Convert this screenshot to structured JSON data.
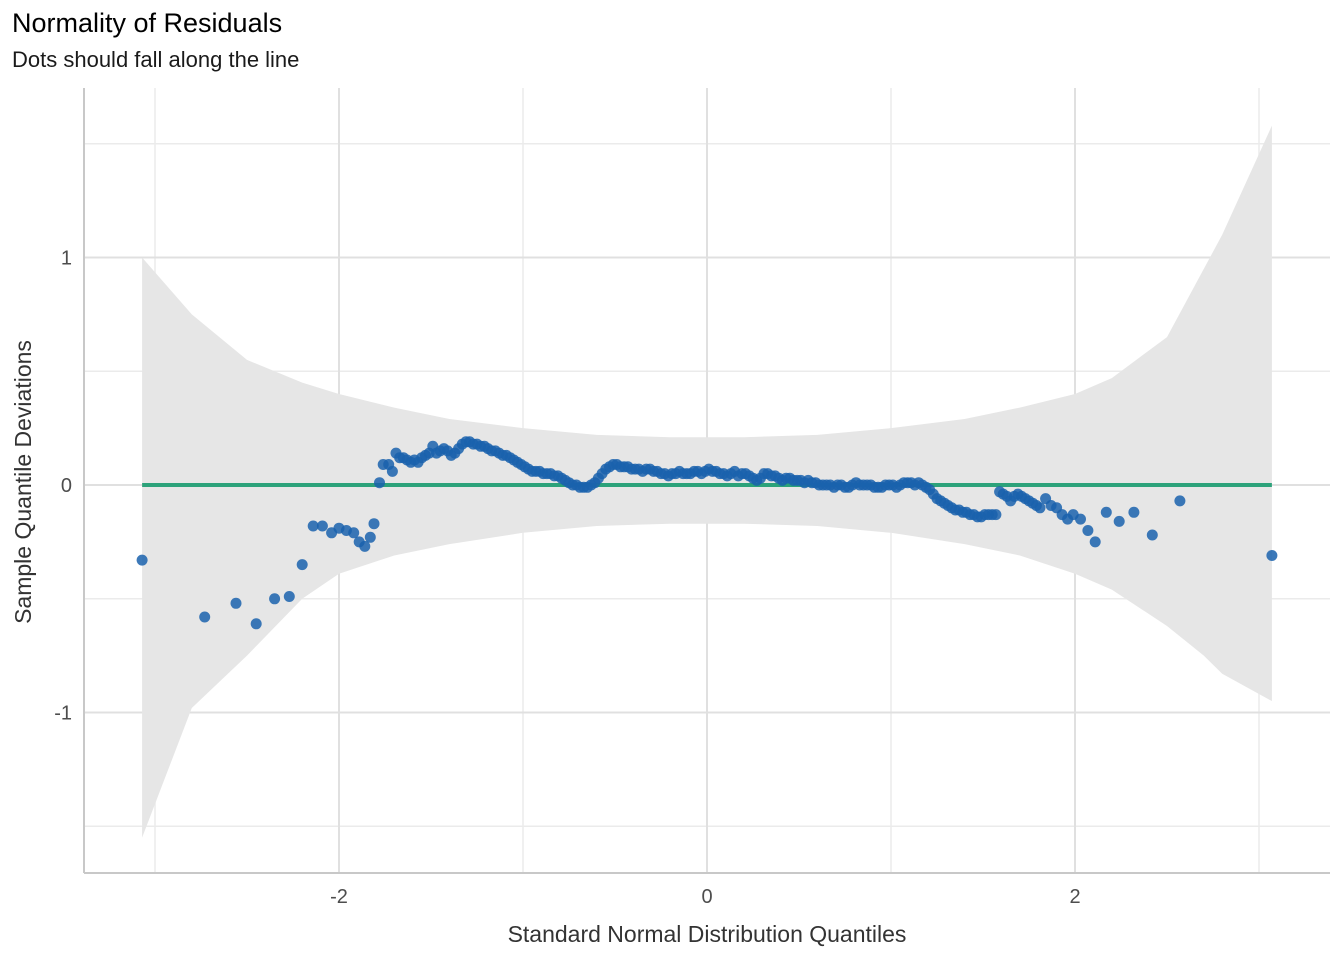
{
  "chart_data": {
    "type": "scatter",
    "title": "Normality of Residuals",
    "subtitle": "Dots should fall along the line",
    "xlabel": "Standard Normal Distribution Quantiles",
    "ylabel": "Sample Quantile Deviations",
    "xlim": [
      -3.4,
      3.4
    ],
    "ylim": [
      -1.7,
      1.75
    ],
    "x_ticks": [
      -2,
      0,
      2
    ],
    "x_tick_labels": [
      "-2",
      "0",
      "2"
    ],
    "y_ticks": [
      1,
      0,
      -1
    ],
    "y_tick_labels": [
      "1",
      "0",
      "-1"
    ],
    "x_minor_grid": [
      -3,
      -1,
      1,
      3
    ],
    "y_minor_grid": [
      1.5,
      0.5,
      -0.5,
      -1.5
    ],
    "grid": true,
    "reference_line": {
      "y": 0,
      "from_x": -3.07,
      "to_x": 3.07,
      "color": "#2ca27a"
    },
    "confidence_band": {
      "color": "#e6e6e6",
      "x": [
        -3.07,
        -2.8,
        -2.5,
        -2.2,
        -2.0,
        -1.7,
        -1.4,
        -1.0,
        -0.6,
        -0.2,
        0.2,
        0.6,
        1.0,
        1.4,
        1.7,
        2.0,
        2.2,
        2.5,
        2.7,
        2.8,
        3.07
      ],
      "upper": [
        1.0,
        0.75,
        0.55,
        0.45,
        0.4,
        0.34,
        0.29,
        0.25,
        0.22,
        0.21,
        0.21,
        0.22,
        0.25,
        0.29,
        0.34,
        0.4,
        0.47,
        0.65,
        0.95,
        1.1,
        1.58
      ],
      "lower": [
        -1.55,
        -0.98,
        -0.75,
        -0.5,
        -0.39,
        -0.31,
        -0.26,
        -0.21,
        -0.18,
        -0.17,
        -0.17,
        -0.18,
        -0.21,
        -0.26,
        -0.31,
        -0.39,
        -0.46,
        -0.62,
        -0.75,
        -0.83,
        -0.95
      ]
    },
    "point_color": "#1a62ad",
    "points": [
      [
        -3.07,
        -0.33
      ],
      [
        -2.73,
        -0.58
      ],
      [
        -2.56,
        -0.52
      ],
      [
        -2.45,
        -0.61
      ],
      [
        -2.35,
        -0.5
      ],
      [
        -2.27,
        -0.49
      ],
      [
        -2.2,
        -0.35
      ],
      [
        -2.14,
        -0.18
      ],
      [
        -2.09,
        -0.18
      ],
      [
        -2.04,
        -0.21
      ],
      [
        -2.0,
        -0.19
      ],
      [
        -1.96,
        -0.2
      ],
      [
        -1.92,
        -0.21
      ],
      [
        -1.89,
        -0.25
      ],
      [
        -1.86,
        -0.27
      ],
      [
        -1.83,
        -0.23
      ],
      [
        -1.81,
        -0.17
      ],
      [
        -1.78,
        0.01
      ],
      [
        -1.76,
        0.09
      ],
      [
        -1.73,
        0.09
      ],
      [
        -1.71,
        0.06
      ],
      [
        -1.69,
        0.14
      ],
      [
        -1.67,
        0.12
      ],
      [
        -1.65,
        0.12
      ],
      [
        -1.63,
        0.11
      ],
      [
        -1.61,
        0.1
      ],
      [
        -1.59,
        0.11
      ],
      [
        -1.57,
        0.1
      ],
      [
        -1.55,
        0.12
      ],
      [
        -1.53,
        0.13
      ],
      [
        -1.51,
        0.14
      ],
      [
        -1.49,
        0.17
      ],
      [
        -1.47,
        0.14
      ],
      [
        -1.45,
        0.15
      ],
      [
        -1.43,
        0.16
      ],
      [
        -1.41,
        0.15
      ],
      [
        -1.39,
        0.13
      ],
      [
        -1.37,
        0.14
      ],
      [
        -1.35,
        0.16
      ],
      [
        -1.33,
        0.18
      ],
      [
        -1.31,
        0.19
      ],
      [
        -1.29,
        0.19
      ],
      [
        -1.27,
        0.18
      ],
      [
        -1.25,
        0.18
      ],
      [
        -1.23,
        0.17
      ],
      [
        -1.21,
        0.17
      ],
      [
        -1.19,
        0.16
      ],
      [
        -1.17,
        0.15
      ],
      [
        -1.15,
        0.15
      ],
      [
        -1.13,
        0.14
      ],
      [
        -1.11,
        0.13
      ],
      [
        -1.09,
        0.13
      ],
      [
        -1.07,
        0.12
      ],
      [
        -1.05,
        0.11
      ],
      [
        -1.03,
        0.1
      ],
      [
        -1.01,
        0.09
      ],
      [
        -0.99,
        0.08
      ],
      [
        -0.97,
        0.07
      ],
      [
        -0.95,
        0.06
      ],
      [
        -0.93,
        0.06
      ],
      [
        -0.91,
        0.06
      ],
      [
        -0.89,
        0.05
      ],
      [
        -0.87,
        0.05
      ],
      [
        -0.85,
        0.05
      ],
      [
        -0.83,
        0.04
      ],
      [
        -0.81,
        0.04
      ],
      [
        -0.79,
        0.03
      ],
      [
        -0.77,
        0.02
      ],
      [
        -0.75,
        0.01
      ],
      [
        -0.73,
        0.0
      ],
      [
        -0.71,
        0.0
      ],
      [
        -0.69,
        -0.01
      ],
      [
        -0.67,
        -0.01
      ],
      [
        -0.65,
        -0.01
      ],
      [
        -0.63,
        0.0
      ],
      [
        -0.61,
        0.01
      ],
      [
        -0.59,
        0.03
      ],
      [
        -0.57,
        0.05
      ],
      [
        -0.55,
        0.07
      ],
      [
        -0.53,
        0.08
      ],
      [
        -0.51,
        0.09
      ],
      [
        -0.49,
        0.09
      ],
      [
        -0.47,
        0.08
      ],
      [
        -0.45,
        0.08
      ],
      [
        -0.43,
        0.08
      ],
      [
        -0.41,
        0.07
      ],
      [
        -0.39,
        0.07
      ],
      [
        -0.37,
        0.07
      ],
      [
        -0.35,
        0.06
      ],
      [
        -0.33,
        0.07
      ],
      [
        -0.31,
        0.07
      ],
      [
        -0.29,
        0.06
      ],
      [
        -0.27,
        0.06
      ],
      [
        -0.25,
        0.05
      ],
      [
        -0.23,
        0.05
      ],
      [
        -0.21,
        0.04
      ],
      [
        -0.19,
        0.05
      ],
      [
        -0.17,
        0.05
      ],
      [
        -0.15,
        0.06
      ],
      [
        -0.13,
        0.05
      ],
      [
        -0.11,
        0.05
      ],
      [
        -0.09,
        0.05
      ],
      [
        -0.07,
        0.06
      ],
      [
        -0.05,
        0.06
      ],
      [
        -0.03,
        0.05
      ],
      [
        -0.01,
        0.06
      ],
      [
        0.01,
        0.07
      ],
      [
        0.03,
        0.06
      ],
      [
        0.05,
        0.06
      ],
      [
        0.07,
        0.05
      ],
      [
        0.09,
        0.05
      ],
      [
        0.11,
        0.04
      ],
      [
        0.13,
        0.05
      ],
      [
        0.15,
        0.06
      ],
      [
        0.17,
        0.04
      ],
      [
        0.19,
        0.05
      ],
      [
        0.21,
        0.05
      ],
      [
        0.23,
        0.04
      ],
      [
        0.25,
        0.03
      ],
      [
        0.27,
        0.02
      ],
      [
        0.29,
        0.03
      ],
      [
        0.31,
        0.05
      ],
      [
        0.33,
        0.05
      ],
      [
        0.35,
        0.04
      ],
      [
        0.37,
        0.04
      ],
      [
        0.39,
        0.03
      ],
      [
        0.41,
        0.02
      ],
      [
        0.43,
        0.03
      ],
      [
        0.45,
        0.03
      ],
      [
        0.47,
        0.02
      ],
      [
        0.49,
        0.02
      ],
      [
        0.51,
        0.02
      ],
      [
        0.53,
        0.01
      ],
      [
        0.55,
        0.02
      ],
      [
        0.57,
        0.01
      ],
      [
        0.59,
        0.01
      ],
      [
        0.61,
        0.0
      ],
      [
        0.63,
        0.0
      ],
      [
        0.65,
        0.0
      ],
      [
        0.67,
        0.0
      ],
      [
        0.69,
        -0.01
      ],
      [
        0.71,
        0.0
      ],
      [
        0.73,
        0.0
      ],
      [
        0.75,
        -0.01
      ],
      [
        0.77,
        -0.01
      ],
      [
        0.79,
        0.0
      ],
      [
        0.81,
        0.01
      ],
      [
        0.83,
        0.0
      ],
      [
        0.85,
        0.0
      ],
      [
        0.87,
        0.0
      ],
      [
        0.89,
        0.0
      ],
      [
        0.91,
        -0.01
      ],
      [
        0.93,
        -0.01
      ],
      [
        0.95,
        -0.01
      ],
      [
        0.97,
        0.0
      ],
      [
        0.99,
        0.0
      ],
      [
        1.01,
        0.0
      ],
      [
        1.03,
        -0.01
      ],
      [
        1.05,
        0.0
      ],
      [
        1.07,
        0.01
      ],
      [
        1.09,
        0.01
      ],
      [
        1.11,
        0.01
      ],
      [
        1.13,
        0.0
      ],
      [
        1.15,
        0.01
      ],
      [
        1.17,
        0.0
      ],
      [
        1.19,
        -0.01
      ],
      [
        1.21,
        -0.02
      ],
      [
        1.23,
        -0.04
      ],
      [
        1.25,
        -0.06
      ],
      [
        1.27,
        -0.07
      ],
      [
        1.29,
        -0.08
      ],
      [
        1.31,
        -0.09
      ],
      [
        1.33,
        -0.1
      ],
      [
        1.35,
        -0.11
      ],
      [
        1.37,
        -0.11
      ],
      [
        1.39,
        -0.12
      ],
      [
        1.41,
        -0.12
      ],
      [
        1.43,
        -0.13
      ],
      [
        1.45,
        -0.13
      ],
      [
        1.47,
        -0.14
      ],
      [
        1.49,
        -0.14
      ],
      [
        1.51,
        -0.13
      ],
      [
        1.53,
        -0.13
      ],
      [
        1.55,
        -0.13
      ],
      [
        1.57,
        -0.13
      ],
      [
        1.59,
        -0.03
      ],
      [
        1.61,
        -0.04
      ],
      [
        1.63,
        -0.05
      ],
      [
        1.65,
        -0.07
      ],
      [
        1.67,
        -0.05
      ],
      [
        1.69,
        -0.04
      ],
      [
        1.71,
        -0.05
      ],
      [
        1.73,
        -0.06
      ],
      [
        1.75,
        -0.07
      ],
      [
        1.77,
        -0.08
      ],
      [
        1.79,
        -0.09
      ],
      [
        1.81,
        -0.1
      ],
      [
        1.84,
        -0.06
      ],
      [
        1.87,
        -0.09
      ],
      [
        1.9,
        -0.1
      ],
      [
        1.93,
        -0.13
      ],
      [
        1.96,
        -0.15
      ],
      [
        1.99,
        -0.13
      ],
      [
        2.03,
        -0.15
      ],
      [
        2.07,
        -0.2
      ],
      [
        2.11,
        -0.25
      ],
      [
        2.17,
        -0.12
      ],
      [
        2.24,
        -0.16
      ],
      [
        2.32,
        -0.12
      ],
      [
        2.42,
        -0.22
      ],
      [
        2.57,
        -0.07
      ],
      [
        3.07,
        -0.31
      ]
    ]
  }
}
